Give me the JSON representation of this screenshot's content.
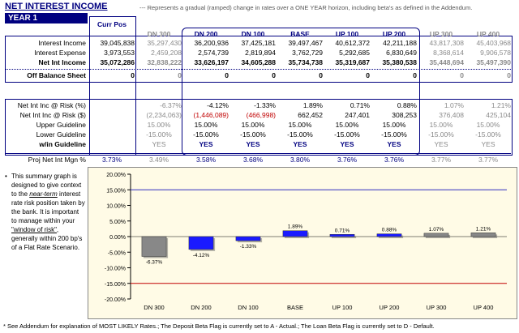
{
  "title": "NET INTEREST INCOME",
  "subtitle": "--- Represents a gradual (ramped) change in rates over a ONE YEAR horizon, including beta's as defined in the Addendum.",
  "year": "YEAR 1",
  "columns": [
    "Curr Pos",
    "DN 300",
    "DN 200",
    "DN 100",
    "BASE",
    "UP 100",
    "UP 200",
    "UP 300",
    "UP 400"
  ],
  "rows": [
    {
      "label": "Interest Income",
      "values": [
        "39,045,838",
        "35,297,430",
        "36,200,936",
        "37,425,181",
        "39,497,467",
        "40,612,372",
        "42,211,188",
        "43,817,308",
        "45,403,968"
      ]
    },
    {
      "label": "Interest Expense",
      "values": [
        "3,973,553",
        "2,459,208",
        "2,574,739",
        "2,819,894",
        "3,762,729",
        "5,292,685",
        "6,830,649",
        "8,368,614",
        "9,906,578"
      ]
    },
    {
      "label": "Net Int Income",
      "values": [
        "35,072,286",
        "32,838,222",
        "33,626,197",
        "34,605,288",
        "35,734,738",
        "35,319,687",
        "35,380,538",
        "35,448,694",
        "35,497,390"
      ]
    },
    {
      "label": "Off Balance Sheet",
      "values": [
        "0",
        "0",
        "0",
        "0",
        "0",
        "0",
        "0",
        "0",
        "0"
      ]
    }
  ],
  "risk_rows": [
    {
      "label": "Net Int Inc @ Risk (%)",
      "values": [
        "",
        "-6.37%",
        "-4.12%",
        "-1.33%",
        "1.89%",
        "0.71%",
        "0.88%",
        "1.07%",
        "1.21%"
      ]
    },
    {
      "label": "Net Int Inc @ Risk ($)",
      "values": [
        "",
        "(2,234,063)",
        "(1,446,089)",
        "(466,998)",
        "662,452",
        "247,401",
        "308,253",
        "376,408",
        "425,104"
      ]
    },
    {
      "label": "Upper Guideline",
      "values": [
        "",
        "15.00%",
        "15.00%",
        "15.00%",
        "15.00%",
        "15.00%",
        "15.00%",
        "15.00%",
        "15.00%"
      ]
    },
    {
      "label": "Lower Guideline",
      "values": [
        "",
        "-15.00%",
        "-15.00%",
        "-15.00%",
        "-15.00%",
        "-15.00%",
        "-15.00%",
        "-15.00%",
        "-15.00%"
      ]
    },
    {
      "label": "w/in Guideline",
      "values": [
        "",
        "YES",
        "YES",
        "YES",
        "YES",
        "YES",
        "YES",
        "YES",
        "YES"
      ]
    },
    {
      "label": "Proj Net Int Mgn %",
      "values": [
        "3.73%",
        "3.49%",
        "3.58%",
        "3.68%",
        "3.80%",
        "3.76%",
        "3.76%",
        "3.77%",
        "3.77%"
      ]
    }
  ],
  "note": {
    "bullet": "•",
    "part1": "This summary graph is designed to give context to the ",
    "em1": "near-term",
    "part2": " interest rate risk position taken by the bank. It is important to manage within your ",
    "em2": "\"window of risk\"",
    "part3": ", generally within 200 bp's of a Flat Rate Scenario."
  },
  "chart_data": {
    "type": "bar",
    "categories": [
      "DN 300",
      "DN 200",
      "DN 100",
      "BASE",
      "UP 100",
      "UP 200",
      "UP 300",
      "UP 400"
    ],
    "values": [
      -6.37,
      -4.12,
      -1.33,
      1.89,
      0.71,
      0.88,
      1.07,
      1.21
    ],
    "data_labels": [
      "-6.37%",
      "-4.12%",
      "-1.33%",
      "1.89%",
      "0.71%",
      "0.88%",
      "1.07%",
      "1.21%"
    ],
    "bar_colors": [
      "#888888",
      "#1a1aff",
      "#1a1aff",
      "#1a1aff",
      "#1a1aff",
      "#1a1aff",
      "#888888",
      "#888888"
    ],
    "ylim": [
      -20,
      20
    ],
    "yticks": [
      "20.00%",
      "15.00%",
      "10.00%",
      "5.00%",
      "0.00%",
      "-5.00%",
      "-10.00%",
      "-15.00%",
      "-20.00%"
    ],
    "ytick_values": [
      20,
      15,
      10,
      5,
      0,
      -5,
      -10,
      -15,
      -20
    ],
    "upper_guideline": 15,
    "lower_guideline": -15,
    "upper_color": "#3030c0",
    "lower_color": "#c00000",
    "title": "",
    "xlabel": "",
    "ylabel": ""
  },
  "footer": "* See Addendum for explanation of MOST LIKELY Rates.;  The Deposit Beta Flag is currently set to A - Actual.;  The Loan Beta Flag is currently set to D - Default."
}
